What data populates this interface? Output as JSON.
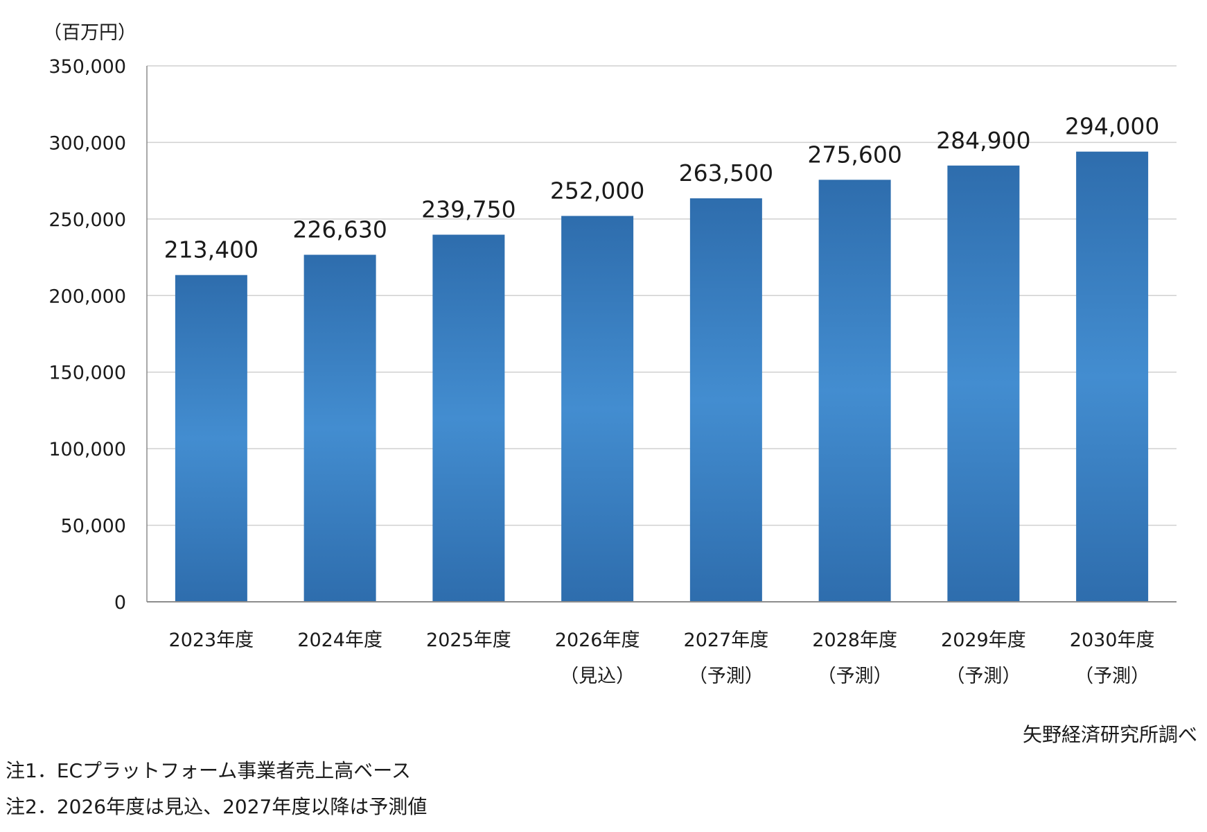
{
  "chart_data": {
    "type": "bar",
    "title": "",
    "y_unit": "（百万円）",
    "xlabel": "",
    "ylabel": "",
    "ylim": [
      0,
      350000
    ],
    "y_ticks": [
      "0",
      "50,000",
      "100,000",
      "150,000",
      "200,000",
      "250,000",
      "300,000",
      "350,000"
    ],
    "y_tick_values": [
      0,
      50000,
      100000,
      150000,
      200000,
      250000,
      300000,
      350000
    ],
    "grid": true,
    "bar_color": "#2e6dad",
    "bar_color_light": "#438dd0",
    "grid_color": "#d0d0d0",
    "categories": [
      [
        "2023年度"
      ],
      [
        "2024年度"
      ],
      [
        "2025年度"
      ],
      [
        "2026年度",
        "（見込）"
      ],
      [
        "2027年度",
        "（予測）"
      ],
      [
        "2028年度",
        "（予測）"
      ],
      [
        "2029年度",
        "（予測）"
      ],
      [
        "2030年度",
        "（予測）"
      ]
    ],
    "values": [
      213400,
      226630,
      239750,
      252000,
      263500,
      275600,
      284900,
      294000
    ],
    "value_labels": [
      "213,400",
      "226,630",
      "239,750",
      "252,000",
      "263,500",
      "275,600",
      "284,900",
      "294,000"
    ]
  },
  "source": "矢野経済研究所調べ",
  "notes": [
    "注1．ECプラットフォーム事業者売上高ベース",
    "注2．2026年度は見込、2027年度以降は予測値"
  ]
}
